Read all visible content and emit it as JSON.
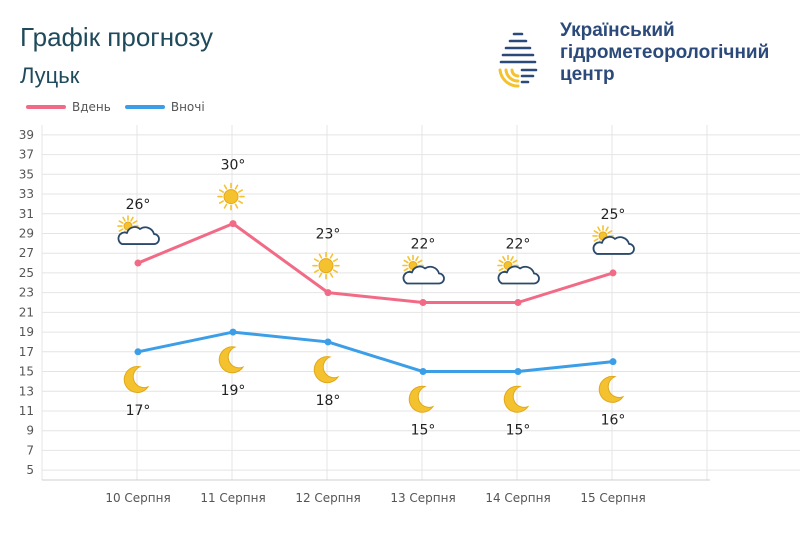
{
  "header": {
    "title": "Графік прогнозу",
    "city": "Луцьк"
  },
  "org": {
    "line1": "Український",
    "line2": "гідрометеорологічний",
    "line3": "центр",
    "logo_icon": "hydromet-drop-logo-icon"
  },
  "colors": {
    "day": "#f26b86",
    "night": "#3d9ee8",
    "grid": "#e4e4e4",
    "sun": "#f5c22f",
    "cloud": "#2b4a6b",
    "moon": "#f5c22f"
  },
  "chart_data": {
    "type": "line",
    "categories": [
      "10 Серпня",
      "11 Серпня",
      "12 Серпня",
      "13 Серпня",
      "14 Серпня",
      "15 Серпня"
    ],
    "y_ticks": [
      5,
      7,
      9,
      11,
      13,
      15,
      17,
      19,
      21,
      23,
      25,
      27,
      29,
      31,
      33,
      35,
      37,
      39
    ],
    "ylim": [
      4,
      40
    ],
    "grid": true,
    "legend": "top-left",
    "series": [
      {
        "name": "Вдень",
        "values": [
          26,
          30,
          23,
          22,
          22,
          25
        ],
        "labels": [
          "26°",
          "30°",
          "23°",
          "22°",
          "22°",
          "25°"
        ],
        "icons": [
          "partly-cloudy-icon",
          "sun-icon",
          "sun-icon",
          "partly-cloudy-icon",
          "partly-cloudy-icon",
          "partly-cloudy-icon"
        ]
      },
      {
        "name": "Вночі",
        "values": [
          17,
          19,
          18,
          15,
          15,
          16
        ],
        "labels": [
          "17°",
          "19°",
          "18°",
          "15°",
          "15°",
          "16°"
        ],
        "icons": [
          "moon-icon",
          "moon-icon",
          "moon-icon",
          "moon-icon",
          "moon-icon",
          "moon-icon"
        ]
      }
    ]
  }
}
